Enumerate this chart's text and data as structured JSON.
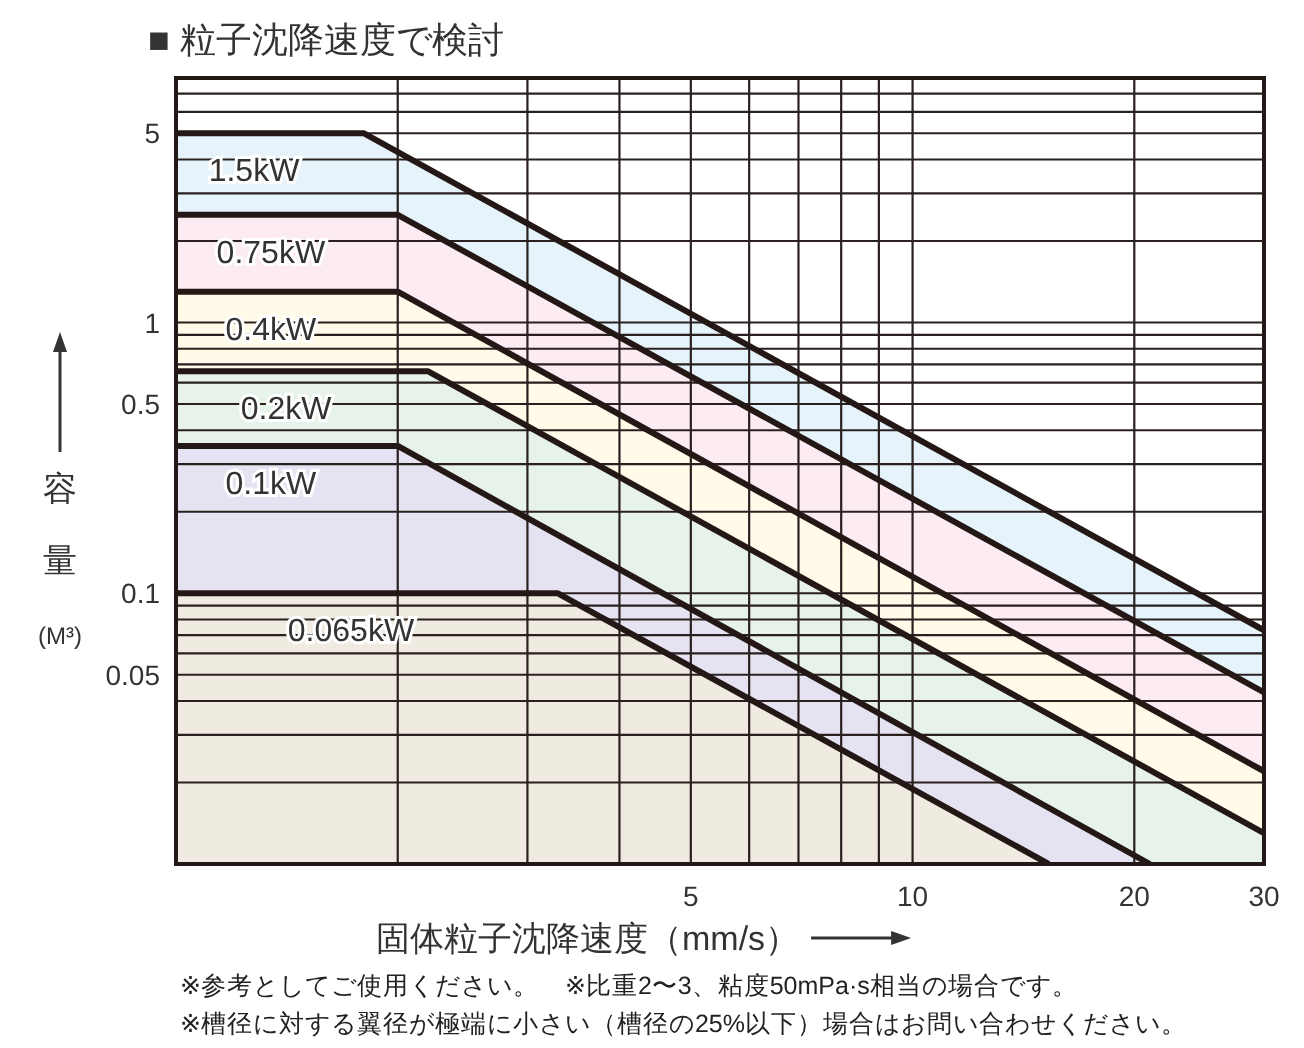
{
  "chart_data": {
    "type": "area",
    "title": "■ 粒子沈降速度で検討",
    "xlabel": "固体粒子沈降速度（mm/s）",
    "ylabel": "容量(M³)",
    "log": "xy",
    "grid": true,
    "xlim": [
      1,
      30
    ],
    "xticks": [
      {
        "value": 2,
        "label": null
      },
      {
        "value": 3,
        "label": null
      },
      {
        "value": 4,
        "label": null
      },
      5,
      {
        "value": 6,
        "label": null
      },
      {
        "value": 7,
        "label": null
      },
      {
        "value": 8,
        "label": null
      },
      {
        "value": 9,
        "label": null
      },
      10,
      20,
      30
    ],
    "ylim": [
      0.01,
      8
    ],
    "yticks": [
      {
        "value": 0.02,
        "label": null
      },
      {
        "value": 0.03,
        "label": null
      },
      {
        "value": 0.04,
        "label": null
      },
      0.05,
      {
        "value": 0.06,
        "label": null
      },
      {
        "value": 0.07,
        "label": null
      },
      {
        "value": 0.08,
        "label": null
      },
      {
        "value": 0.09,
        "label": null
      },
      0.1,
      {
        "value": 0.2,
        "label": null
      },
      {
        "value": 0.3,
        "label": null
      },
      {
        "value": 0.4,
        "label": null
      },
      0.5,
      {
        "value": 0.6,
        "label": null
      },
      {
        "value": 0.7,
        "label": null
      },
      {
        "value": 0.8,
        "label": null
      },
      {
        "value": 0.9,
        "label": null
      },
      1,
      {
        "value": 2,
        "label": null
      },
      {
        "value": 3,
        "label": null
      },
      {
        "value": 4,
        "label": null
      },
      5,
      {
        "value": 6,
        "label": null
      },
      {
        "value": 7,
        "label": null
      }
    ],
    "series": [
      {
        "name": "1.5kW",
        "color": "#e6f3fb",
        "x": [
          1,
          1.8,
          30
        ],
        "values": [
          5,
          5,
          0.073
        ]
      },
      {
        "name": "0.75kW",
        "color": "#fdebf3",
        "x": [
          1,
          2,
          30
        ],
        "values": [
          2.5,
          2.5,
          0.043
        ]
      },
      {
        "name": "0.4kW",
        "color": "#fffbe8",
        "x": [
          1,
          2,
          30
        ],
        "values": [
          1.3,
          1.3,
          0.022
        ]
      },
      {
        "name": "0.2kW",
        "color": "#e7f2e9",
        "x": [
          1,
          2.2,
          30
        ],
        "values": [
          0.66,
          0.66,
          0.013
        ]
      },
      {
        "name": "0.1kW",
        "color": "#e5e3f1",
        "x": [
          1,
          2,
          21
        ],
        "values": [
          0.35,
          0.35,
          0.01
        ]
      },
      {
        "name": "0.065kW",
        "color": "#efebe0",
        "x": [
          1,
          3.3,
          15.3
        ],
        "values": [
          0.1,
          0.1,
          0.01
        ]
      }
    ],
    "annotations": [
      "※参考としてご使用ください。　※比重2〜3、粘度50mPa·s相当の場合です。",
      "※槽径に対する翼径が極端に小さい（槽径の25%以下）場合はお問い合わせください。"
    ]
  }
}
